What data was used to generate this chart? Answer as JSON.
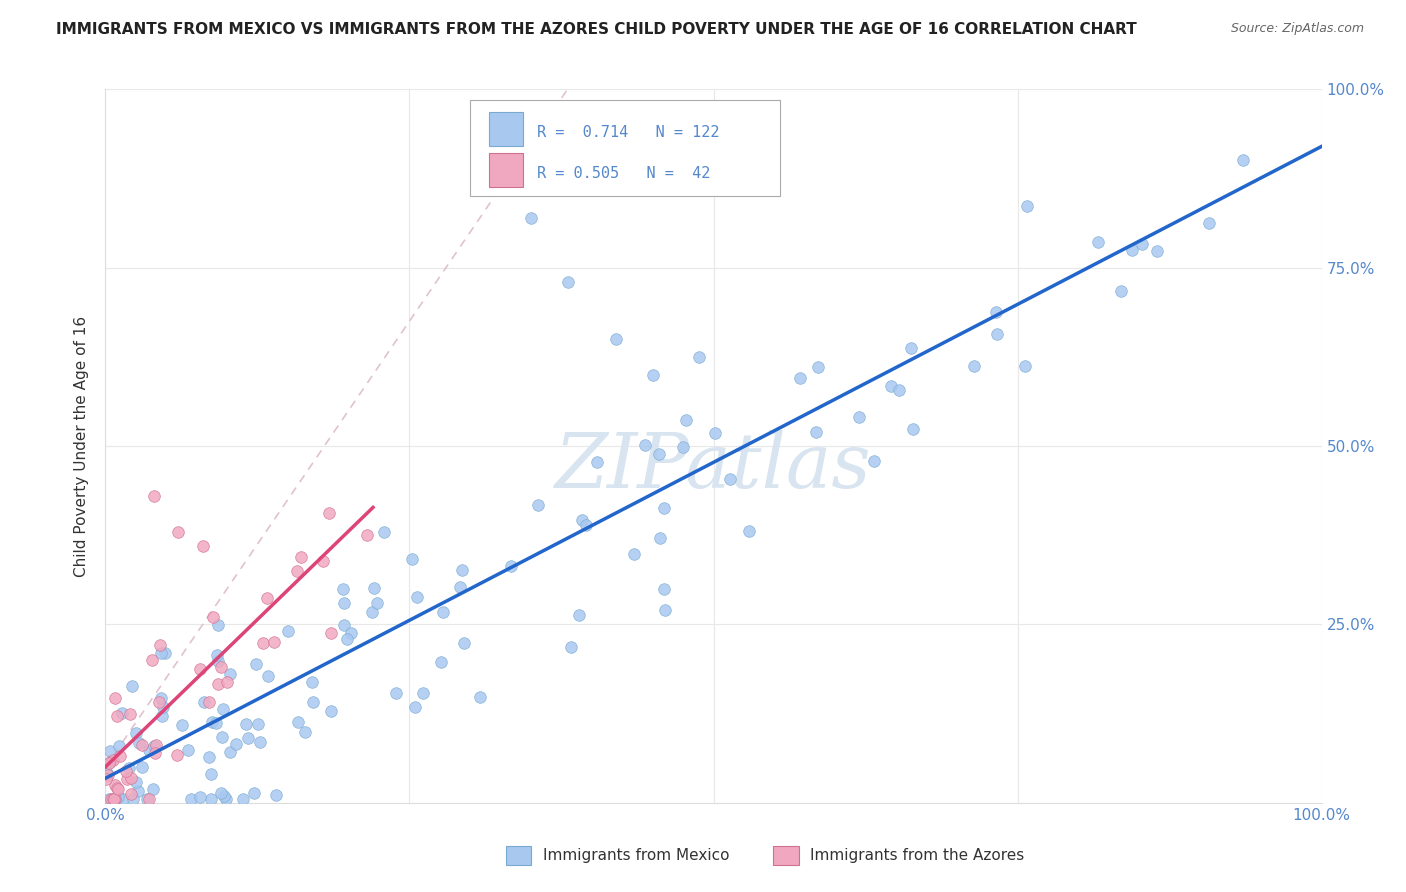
{
  "title": "IMMIGRANTS FROM MEXICO VS IMMIGRANTS FROM THE AZORES CHILD POVERTY UNDER THE AGE OF 16 CORRELATION CHART",
  "source": "Source: ZipAtlas.com",
  "ylabel": "Child Poverty Under the Age of 16",
  "legend1_label": "Immigrants from Mexico",
  "legend2_label": "Immigrants from the Azores",
  "R_mexico": 0.714,
  "N_mexico": 122,
  "R_azores": 0.505,
  "N_azores": 42,
  "mexico_color": "#a8c8f0",
  "mexico_edge_color": "#7aaad0",
  "azores_color": "#f0a8c0",
  "azores_edge_color": "#d07090",
  "mexico_line_color": "#2266cc",
  "azores_line_color": "#dd4477",
  "diag_color": "#ddbbbb",
  "watermark": "ZIPatlas",
  "background_color": "#ffffff",
  "title_color": "#222222",
  "title_fontsize": 11,
  "watermark_color": "#d8e4f0",
  "tick_color": "#5588cc",
  "grid_color": "#e8e8e8"
}
